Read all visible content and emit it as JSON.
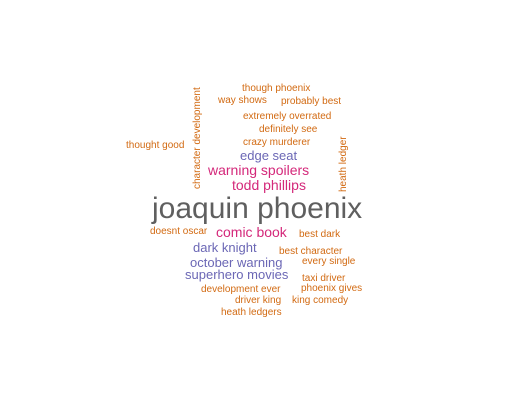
{
  "colors": {
    "orange": "#d26a12",
    "magenta": "#d4287a",
    "purple": "#6b67b5",
    "gray": "#5f5f5f"
  },
  "words": [
    {
      "text": "though phoenix",
      "color": "orange"
    },
    {
      "text": "way shows",
      "color": "orange"
    },
    {
      "text": "probably best",
      "color": "orange"
    },
    {
      "text": "extremely overrated",
      "color": "orange"
    },
    {
      "text": "definitely see",
      "color": "orange"
    },
    {
      "text": "thought good",
      "color": "orange"
    },
    {
      "text": "crazy murderer",
      "color": "orange"
    },
    {
      "text": "edge seat",
      "color": "purple"
    },
    {
      "text": "warning spoilers",
      "color": "magenta"
    },
    {
      "text": "todd phillips",
      "color": "magenta"
    },
    {
      "text": "joaquin phoenix",
      "color": "gray"
    },
    {
      "text": "doesnt oscar",
      "color": "orange"
    },
    {
      "text": "comic book",
      "color": "magenta"
    },
    {
      "text": "best dark",
      "color": "orange"
    },
    {
      "text": "dark knight",
      "color": "purple"
    },
    {
      "text": "best character",
      "color": "orange"
    },
    {
      "text": "october warning",
      "color": "purple"
    },
    {
      "text": "every single",
      "color": "orange"
    },
    {
      "text": "superhero movies",
      "color": "purple"
    },
    {
      "text": "taxi driver",
      "color": "orange"
    },
    {
      "text": "development ever",
      "color": "orange"
    },
    {
      "text": "phoenix gives",
      "color": "orange"
    },
    {
      "text": "driver king",
      "color": "orange"
    },
    {
      "text": "king comedy",
      "color": "orange"
    },
    {
      "text": "heath ledgers",
      "color": "orange"
    },
    {
      "text": "character development",
      "color": "orange"
    },
    {
      "text": "heath ledger",
      "color": "orange"
    }
  ]
}
